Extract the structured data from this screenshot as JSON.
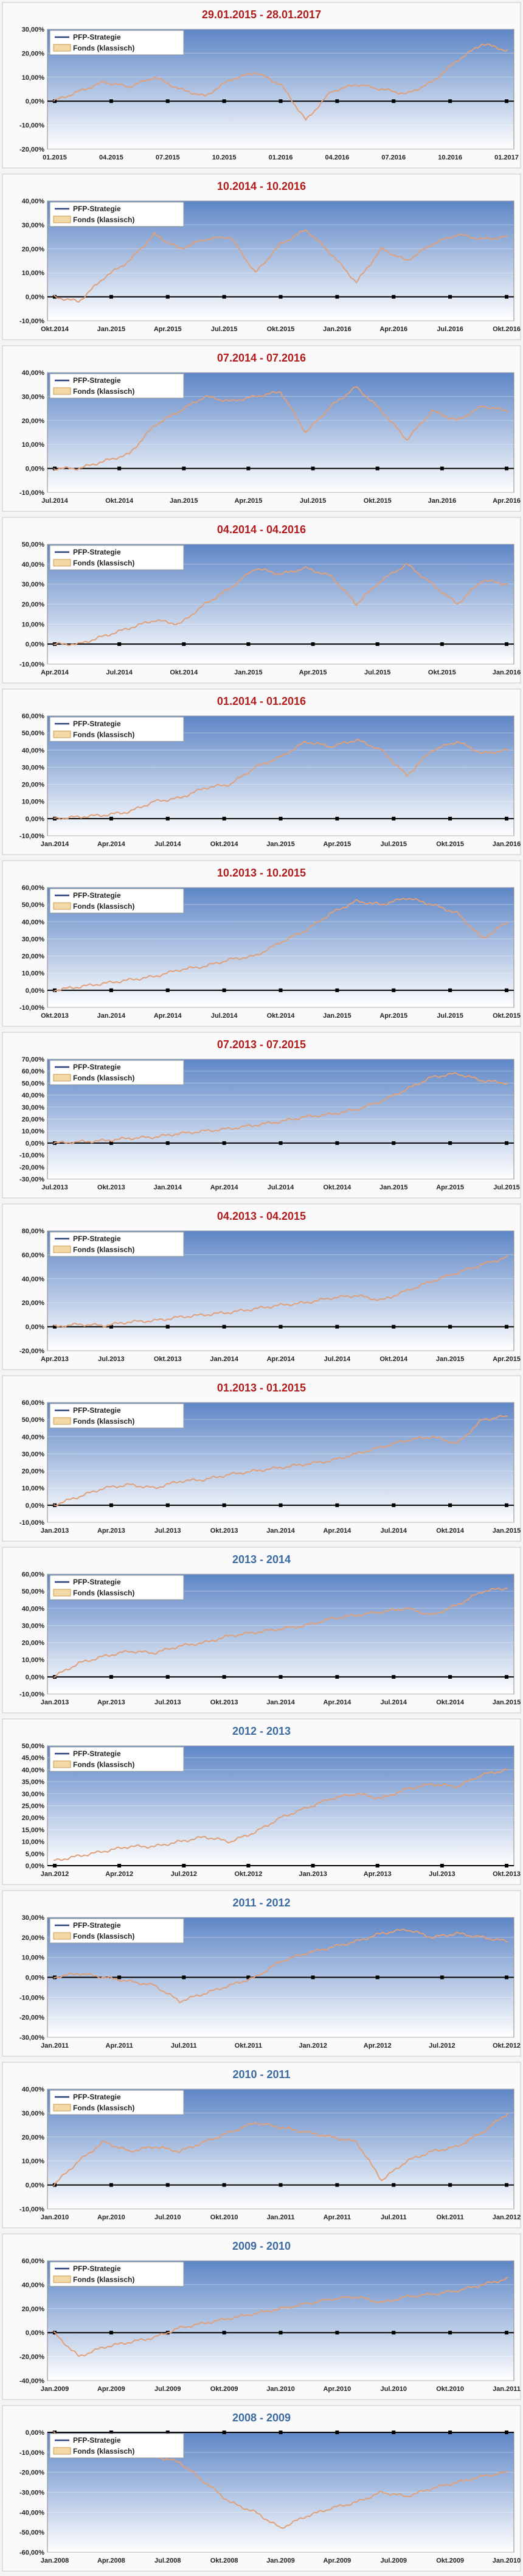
{
  "colors": {
    "title_red": "#b01c1c",
    "title_blue": "#3a6aa0",
    "plot_bg_top": "#5e86c6",
    "plot_bg_bottom": "#ffffff",
    "fonds_line": "#e0a07a",
    "strategy_line": "#2b3f7a",
    "zero_axis": "#000000"
  },
  "legend": [
    "PFP-Strategie",
    "Fonds (klassisch)"
  ],
  "chart_data": [
    {
      "type": "line",
      "title": "29.01.2015 - 28.01.2017",
      "title_color": "red",
      "yticks": [
        "-20,00%",
        "-10,00%",
        "0,00%",
        "10,00%",
        "20,00%",
        "30,00%"
      ],
      "ylim": [
        -20,
        30
      ],
      "xticks": [
        "01.2015",
        "04.2015",
        "07.2015",
        "10.2015",
        "01.2016",
        "04.2016",
        "07.2016",
        "10.2016",
        "01.2017"
      ],
      "series": [
        {
          "name": "PFP-Strategie",
          "values": []
        },
        {
          "name": "Fonds (klassisch)",
          "values": [
            0,
            4,
            8,
            6,
            10,
            5,
            2,
            9,
            12,
            7,
            -8,
            4,
            7,
            5,
            3,
            8,
            17,
            24,
            21
          ]
        }
      ]
    },
    {
      "type": "line",
      "title": "10.2014 - 10.2016",
      "title_color": "red",
      "yticks": [
        "-10,00%",
        "0,00%",
        "10,00%",
        "20,00%",
        "30,00%",
        "40,00%"
      ],
      "ylim": [
        -10,
        40
      ],
      "xticks": [
        "Okt.2014",
        "Jan.2015",
        "Apr.2015",
        "Jul.2015",
        "Okt.2015",
        "Jan.2016",
        "Apr.2016",
        "Jul.2016",
        "Okt.2016"
      ],
      "series": [
        {
          "name": "PFP-Strategie",
          "values": []
        },
        {
          "name": "Fonds (klassisch)",
          "values": [
            0,
            -2,
            8,
            15,
            26,
            20,
            24,
            25,
            10,
            22,
            28,
            18,
            6,
            20,
            15,
            22,
            26,
            24,
            25
          ]
        }
      ]
    },
    {
      "type": "line",
      "title": "07.2014 - 07.2016",
      "title_color": "red",
      "yticks": [
        "-10,00%",
        "0,00%",
        "10,00%",
        "20,00%",
        "30,00%",
        "40,00%"
      ],
      "ylim": [
        -10,
        40
      ],
      "xticks": [
        "Jul.2014",
        "Okt.2014",
        "Jan.2015",
        "Apr.2015",
        "Jul.2015",
        "Okt.2015",
        "Jan.2016",
        "Apr.2016"
      ],
      "series": [
        {
          "name": "PFP-Strategie",
          "values": []
        },
        {
          "name": "Fonds (klassisch)",
          "values": [
            0,
            0,
            3,
            6,
            18,
            24,
            30,
            28,
            30,
            32,
            15,
            26,
            34,
            24,
            12,
            24,
            20,
            26,
            24
          ]
        }
      ]
    },
    {
      "type": "line",
      "title": "04.2014 - 04.2016",
      "title_color": "red",
      "yticks": [
        "-10,00%",
        "0,00%",
        "10,00%",
        "20,00%",
        "30,00%",
        "40,00%",
        "50,00%"
      ],
      "ylim": [
        -10,
        50
      ],
      "xticks": [
        "Apr.2014",
        "Jul.2014",
        "Okt.2014",
        "Jan.2015",
        "Apr.2015",
        "Jul.2015",
        "Okt.2015",
        "Jan.2016"
      ],
      "series": [
        {
          "name": "PFP-Strategie",
          "values": []
        },
        {
          "name": "Fonds (klassisch)",
          "values": [
            0,
            0,
            4,
            8,
            12,
            10,
            20,
            28,
            38,
            35,
            38,
            34,
            20,
            32,
            40,
            30,
            20,
            32,
            30
          ]
        }
      ]
    },
    {
      "type": "line",
      "title": "01.2014 - 01.2016",
      "title_color": "red",
      "yticks": [
        "-10,00%",
        "0,00%",
        "10,00%",
        "20,00%",
        "30,00%",
        "40,00%",
        "50,00%",
        "60,00%"
      ],
      "ylim": [
        -10,
        60
      ],
      "xticks": [
        "Jan.2014",
        "Apr.2014",
        "Jul.2014",
        "Okt.2014",
        "Jan.2015",
        "Apr.2015",
        "Jul.2015",
        "Okt.2015",
        "Jan.2016"
      ],
      "series": [
        {
          "name": "PFP-Strategie",
          "values": []
        },
        {
          "name": "Fonds (klassisch)",
          "values": [
            0,
            1,
            2,
            4,
            10,
            12,
            18,
            20,
            30,
            36,
            45,
            42,
            46,
            40,
            25,
            40,
            45,
            38,
            40
          ]
        }
      ]
    },
    {
      "type": "line",
      "title": "10.2013 - 10.2015",
      "title_color": "red",
      "yticks": [
        "-10,00%",
        "0,00%",
        "10,00%",
        "20,00%",
        "30,00%",
        "40,00%",
        "50,00%",
        "60,00%"
      ],
      "ylim": [
        -10,
        60
      ],
      "xticks": [
        "Okt.2013",
        "Jan.2014",
        "Apr.2014",
        "Jul.2014",
        "Okt.2014",
        "Jan.2015",
        "Apr.2015",
        "Jul.2015",
        "Okt.2015"
      ],
      "series": [
        {
          "name": "PFP-Strategie",
          "values": []
        },
        {
          "name": "Fonds (klassisch)",
          "values": [
            0,
            2,
            4,
            6,
            8,
            12,
            14,
            18,
            20,
            28,
            35,
            45,
            52,
            50,
            54,
            50,
            45,
            30,
            40
          ]
        }
      ]
    },
    {
      "type": "line",
      "title": "07.2013 - 07.2015",
      "title_color": "red",
      "yticks": [
        "-30,00%",
        "-20,00%",
        "-10,00%",
        "0,00%",
        "10,00%",
        "20,00%",
        "30,00%",
        "40,00%",
        "50,00%",
        "60,00%",
        "70,00%"
      ],
      "ylim": [
        -30,
        70
      ],
      "xticks": [
        "Jul.2013",
        "Okt.2013",
        "Jan.2014",
        "Apr.2014",
        "Jul.2014",
        "Okt.2014",
        "Jan.2015",
        "Apr.2015",
        "Jul.2015"
      ],
      "series": [
        {
          "name": "PFP-Strategie",
          "values": []
        },
        {
          "name": "Fonds (klassisch)",
          "values": [
            0,
            1,
            2,
            4,
            5,
            8,
            10,
            12,
            15,
            18,
            22,
            24,
            28,
            35,
            45,
            55,
            58,
            52,
            50
          ]
        }
      ]
    },
    {
      "type": "line",
      "title": "04.2013 - 04.2015",
      "title_color": "red",
      "yticks": [
        "-20,00%",
        "0,00%",
        "20,00%",
        "40,00%",
        "60,00%",
        "80,00%"
      ],
      "ylim": [
        -20,
        80
      ],
      "xticks": [
        "Apr.2013",
        "Jul.2013",
        "Okt.2013",
        "Jan.2014",
        "Apr.2014",
        "Jul.2014",
        "Okt.2014",
        "Jan.2015",
        "Apr.2015"
      ],
      "series": [
        {
          "name": "PFP-Strategie",
          "values": []
        },
        {
          "name": "Fonds (klassisch)",
          "values": [
            0,
            2,
            1,
            4,
            5,
            8,
            10,
            12,
            15,
            18,
            20,
            24,
            26,
            22,
            30,
            38,
            45,
            52,
            58
          ]
        }
      ]
    },
    {
      "type": "line",
      "title": "01.2013 - 01.2015",
      "title_color": "red",
      "yticks": [
        "-10,00%",
        "0,00%",
        "10,00%",
        "20,00%",
        "30,00%",
        "40,00%",
        "50,00%",
        "60,00%"
      ],
      "ylim": [
        -10,
        60
      ],
      "xticks": [
        "Jan.2013",
        "Apr.2013",
        "Jul.2013",
        "Okt.2013",
        "Jan.2014",
        "Apr.2014",
        "Jul.2014",
        "Okt.2014",
        "Jan.2015"
      ],
      "series": [
        {
          "name": "PFP-Strategie",
          "values": []
        },
        {
          "name": "Fonds (klassisch)",
          "values": [
            0,
            5,
            10,
            12,
            10,
            14,
            15,
            18,
            20,
            22,
            24,
            26,
            30,
            34,
            38,
            40,
            36,
            50,
            52
          ]
        }
      ]
    },
    {
      "type": "line",
      "title": "2013 - 2014",
      "title_color": "blue",
      "yticks": [
        "-10,00%",
        "0,00%",
        "10,00%",
        "20,00%",
        "30,00%",
        "40,00%",
        "50,00%",
        "60,00%"
      ],
      "ylim": [
        -10,
        60
      ],
      "xticks": [
        "Jan.2013",
        "Apr.2013",
        "Jul.2013",
        "Okt.2013",
        "Jan.2014",
        "Apr.2014",
        "Jul.2014",
        "Okt.2014",
        "Jan.2015"
      ],
      "series": [
        {
          "name": "PFP-Strategie",
          "values": []
        },
        {
          "name": "Fonds (klassisch)",
          "values": [
            0,
            8,
            12,
            15,
            14,
            18,
            20,
            24,
            26,
            28,
            30,
            34,
            36,
            38,
            40,
            36,
            42,
            50,
            52
          ]
        }
      ]
    },
    {
      "type": "line",
      "title": "2012 - 2013",
      "title_color": "blue",
      "yticks": [
        "0,00%",
        "5,00%",
        "10,00%",
        "15,00%",
        "20,00%",
        "25,00%",
        "30,00%",
        "35,00%",
        "40,00%",
        "45,00%",
        "50,00%"
      ],
      "ylim": [
        0,
        50
      ],
      "xticks": [
        "Jan.2012",
        "Apr.2012",
        "Jul.2012",
        "Okt.2012",
        "Jan.2013",
        "Apr.2013",
        "Jul.2013",
        "Okt.2013"
      ],
      "series": [
        {
          "name": "PFP-Strategie",
          "values": []
        },
        {
          "name": "Fonds (klassisch)",
          "values": [
            2,
            4,
            6,
            8,
            8,
            10,
            12,
            10,
            14,
            20,
            24,
            28,
            30,
            28,
            32,
            34,
            33,
            38,
            40
          ]
        }
      ]
    },
    {
      "type": "line",
      "title": "2011 - 2012",
      "title_color": "blue",
      "yticks": [
        "-30,00%",
        "-20,00%",
        "-10,00%",
        "0,00%",
        "10,00%",
        "20,00%",
        "30,00%"
      ],
      "ylim": [
        -30,
        30
      ],
      "xticks": [
        "Jan.2011",
        "Apr.2011",
        "Jul.2011",
        "Okt.2011",
        "Jan.2012",
        "Apr.2012",
        "Jul.2012",
        "Okt.2012"
      ],
      "series": [
        {
          "name": "PFP-Strategie",
          "values": []
        },
        {
          "name": "Fonds (klassisch)",
          "values": [
            0,
            2,
            0,
            -2,
            -4,
            -12,
            -8,
            -4,
            0,
            8,
            12,
            15,
            18,
            22,
            24,
            20,
            22,
            20,
            18
          ]
        }
      ]
    },
    {
      "type": "line",
      "title": "2010 - 2011",
      "title_color": "blue",
      "yticks": [
        "-10,00%",
        "0,00%",
        "10,00%",
        "20,00%",
        "30,00%",
        "40,00%"
      ],
      "ylim": [
        -10,
        40
      ],
      "xticks": [
        "Jan.2010",
        "Apr.2010",
        "Jul.2010",
        "Okt.2010",
        "Jan.2011",
        "Apr.2011",
        "Jul.2011",
        "Okt.2011",
        "Jan.2012"
      ],
      "series": [
        {
          "name": "PFP-Strategie",
          "values": []
        },
        {
          "name": "Fonds (klassisch)",
          "values": [
            0,
            10,
            18,
            14,
            16,
            14,
            18,
            22,
            26,
            24,
            22,
            20,
            18,
            2,
            10,
            14,
            16,
            22,
            30
          ]
        }
      ]
    },
    {
      "type": "line",
      "title": "2009 - 2010",
      "title_color": "blue",
      "yticks": [
        "-40,00%",
        "-20,00%",
        "0,00%",
        "20,00%",
        "40,00%",
        "60,00%"
      ],
      "ylim": [
        -40,
        60
      ],
      "xticks": [
        "Jan.2009",
        "Apr.2009",
        "Jul.2009",
        "Okt.2009",
        "Jan.2010",
        "Apr.2010",
        "Jul.2010",
        "Okt.2010",
        "Jan.2011"
      ],
      "series": [
        {
          "name": "PFP-Strategie",
          "values": []
        },
        {
          "name": "Fonds (klassisch)",
          "values": [
            0,
            -20,
            -12,
            -8,
            -4,
            4,
            8,
            12,
            16,
            20,
            24,
            28,
            30,
            25,
            30,
            32,
            35,
            40,
            45
          ]
        }
      ]
    },
    {
      "type": "line",
      "title": "2008 - 2009",
      "title_color": "blue",
      "yticks": [
        "-60,00%",
        "-50,00%",
        "-40,00%",
        "-30,00%",
        "-20,00%",
        "-10,00%",
        "0,00%"
      ],
      "ylim": [
        -60,
        0
      ],
      "xticks": [
        "Jan.2008",
        "Apr.2008",
        "Jul.2008",
        "Okt.2008",
        "Jan.2009",
        "Apr.2009",
        "Jul.2009",
        "Okt.2009",
        "Jan.2010"
      ],
      "series": [
        {
          "name": "PFP-Strategie",
          "values": []
        },
        {
          "name": "Fonds (klassisch)",
          "values": [
            0,
            -8,
            -5,
            -10,
            -12,
            -15,
            -25,
            -35,
            -40,
            -48,
            -42,
            -38,
            -35,
            -30,
            -32,
            -28,
            -25,
            -22,
            -20
          ]
        }
      ]
    }
  ]
}
